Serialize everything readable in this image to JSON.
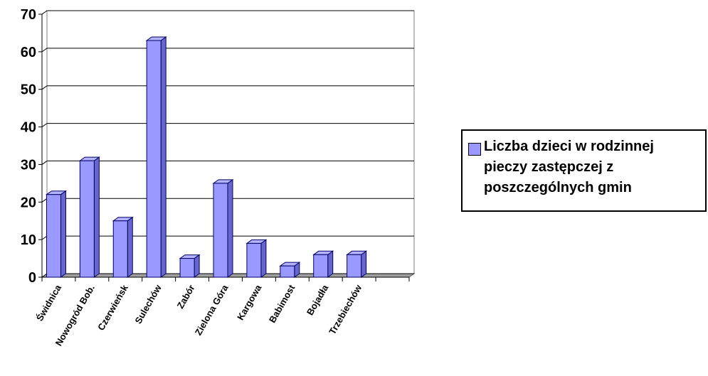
{
  "chart_data": {
    "type": "bar3d",
    "categories": [
      "Świdnica",
      "Nowogród Bob.",
      "Czerwieńsk",
      "Sulechów",
      "Zabór",
      "Zielona Góra",
      "Kargowa",
      "Babimost",
      "Bojadła",
      "Trzebiechów",
      null
    ],
    "series": [
      {
        "name": "Liczba dzieci w rodzinnej pieczy zastępczej z poszczególnych gmin",
        "color": "#9999ff",
        "values": [
          22,
          31,
          15,
          63,
          5,
          25,
          9,
          3,
          6,
          6,
          null
        ]
      }
    ],
    "ylim": [
      0,
      70
    ],
    "yticks": [
      0,
      10,
      20,
      30,
      40,
      50,
      60,
      70
    ],
    "grid": true,
    "legend": "right"
  }
}
